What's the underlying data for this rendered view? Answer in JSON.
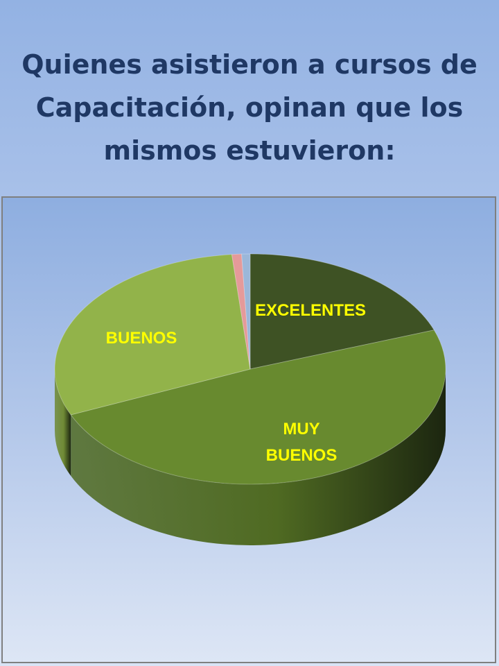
{
  "title_lines": [
    "Quienes asistieron a cursos de",
    "Capacitación, opinan que los",
    "mismos estuvieron:"
  ],
  "chart_data": {
    "type": "pie",
    "style": "3d",
    "categories": [
      "EXCELENTES",
      "MUY BUENOS",
      "BUENOS",
      "",
      ""
    ],
    "values": [
      19.5,
      49,
      30,
      0.8,
      0.7
    ],
    "label_lines": [
      [
        "EXCELENTES"
      ],
      [
        "MUY",
        "BUENOS"
      ],
      [
        "BUENOS"
      ],
      [],
      []
    ],
    "colors": [
      "#3e5224",
      "#688a2f",
      "#92b34a",
      "#e59a9a",
      "#9bb7d9"
    ],
    "side_colors": [
      "#2e3e18",
      "#4f6a22",
      "#6f8a35",
      "#c47f7f",
      "#7e9bc0"
    ],
    "label_color": "#ffff00",
    "start": "12 o'clock",
    "direction": "clockwise",
    "legend": "none"
  }
}
